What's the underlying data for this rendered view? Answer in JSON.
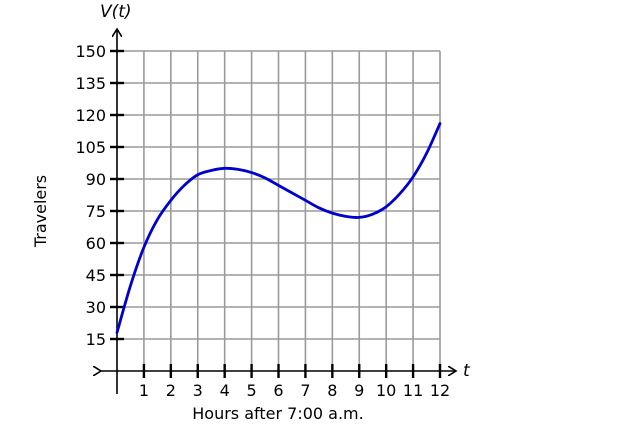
{
  "chart_data": {
    "type": "line",
    "title": "",
    "ylabel_top": "V(t)",
    "xlabel_right": "t",
    "xlabel": "Hours after 7:00 a.m.",
    "ylabel": "Travelers",
    "xlim": [
      0,
      12
    ],
    "ylim": [
      0,
      150
    ],
    "xticks": [
      1,
      2,
      3,
      4,
      5,
      6,
      7,
      8,
      9,
      10,
      11,
      12
    ],
    "yticks": [
      15,
      30,
      45,
      60,
      75,
      90,
      105,
      120,
      135,
      150
    ],
    "grid": true,
    "series": [
      {
        "color": "#0000cc",
        "x": [
          0,
          0.5,
          1,
          1.5,
          2,
          2.5,
          3,
          3.5,
          4,
          4.5,
          5,
          5.5,
          6,
          6.5,
          7,
          7.5,
          8,
          8.5,
          9,
          9.5,
          10,
          10.5,
          11,
          11.5,
          12
        ],
        "y": [
          18,
          40,
          58,
          71,
          80,
          87,
          92,
          94,
          95,
          94.5,
          93,
          90.5,
          87,
          83.5,
          80,
          76.5,
          74,
          72.5,
          72,
          73.5,
          77,
          83,
          91,
          102,
          116
        ]
      }
    ]
  }
}
